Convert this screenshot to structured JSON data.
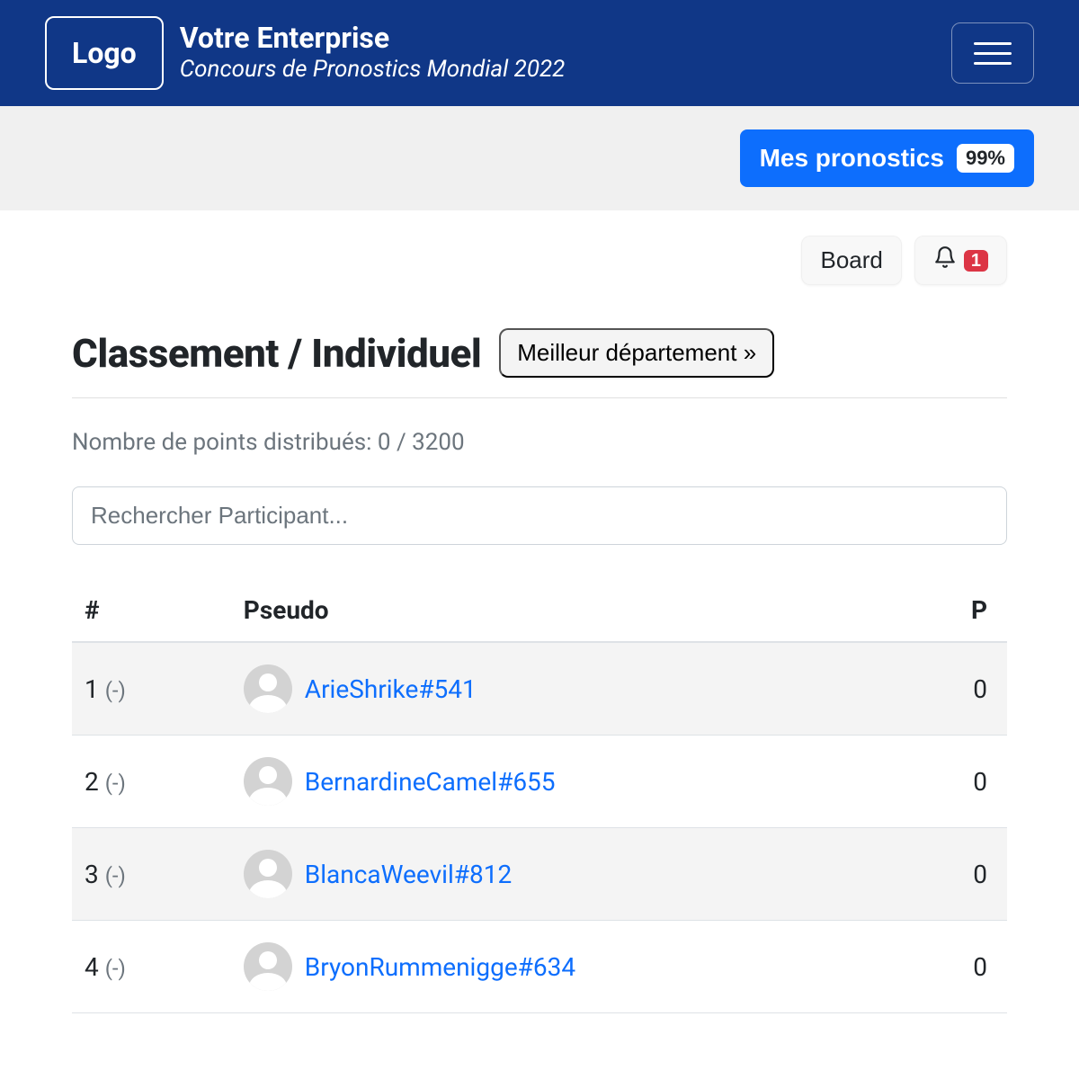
{
  "navbar": {
    "logo_text": "Logo",
    "title": "Votre Enterprise",
    "subtitle": "Concours de Pronostics Mondial 2022"
  },
  "subbar": {
    "pronostics_label": "Mes pronostics",
    "pronostics_badge": "99%"
  },
  "actions": {
    "board_label": "Board",
    "notif_count": "1"
  },
  "title": {
    "heading": "Classement / Individuel",
    "dept_link": "Meilleur département »"
  },
  "points_info": "Nombre de points distribués: 0 / 3200",
  "search": {
    "placeholder": "Rechercher Participant..."
  },
  "table": {
    "headers": {
      "rank": "#",
      "pseudo": "Pseudo",
      "points": "P"
    },
    "rows": [
      {
        "rank": "1",
        "delta": "(-)",
        "pseudo": "ArieShrike#541",
        "points": "0"
      },
      {
        "rank": "2",
        "delta": "(-)",
        "pseudo": "BernardineCamel#655",
        "points": "0"
      },
      {
        "rank": "3",
        "delta": "(-)",
        "pseudo": "BlancaWeevil#812",
        "points": "0"
      },
      {
        "rank": "4",
        "delta": "(-)",
        "pseudo": "BryonRummenigge#634",
        "points": "0"
      }
    ]
  },
  "colors": {
    "navbar_bg": "#103787",
    "primary": "#0d6efd",
    "danger": "#dc3545",
    "muted": "#6c757d",
    "stripe": "#f4f4f4"
  }
}
